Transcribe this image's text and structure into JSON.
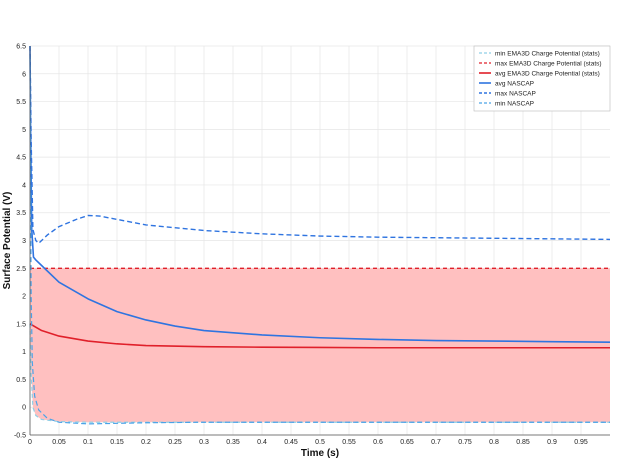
{
  "chart_data": {
    "type": "line",
    "title": "",
    "xlabel": "Time (s)",
    "ylabel": "Surface Potential (V)",
    "xlim": [
      0,
      1.0
    ],
    "ylim": [
      -0.5,
      6.5
    ],
    "x_ticks": [
      "0",
      "0.05",
      "0.1",
      "0.15",
      "0.2",
      "0.25",
      "0.3",
      "0.35",
      "0.4",
      "0.45",
      "0.5",
      "0.55",
      "0.6",
      "0.65",
      "0.7",
      "0.75",
      "0.8",
      "0.85",
      "0.9",
      "0.95"
    ],
    "y_ticks": [
      "-0.5",
      "0",
      "0.5",
      "1",
      "1.5",
      "2",
      "2.5",
      "3",
      "3.5",
      "4",
      "4.5",
      "5",
      "5.5",
      "6",
      "6.5"
    ],
    "grid": true,
    "legend_position": "top-right",
    "band": {
      "color": "#ffc0c0",
      "x": [
        0,
        0.002,
        0.005,
        0.01,
        0.02,
        0.05,
        0.1,
        0.2,
        0.3,
        0.5,
        0.7,
        1.0
      ],
      "upper": [
        2.5,
        2.5,
        2.5,
        2.5,
        2.5,
        2.5,
        2.5,
        2.5,
        2.5,
        2.5,
        2.5,
        2.5
      ],
      "lower": [
        1.5,
        0.6,
        0.0,
        -0.15,
        -0.22,
        -0.26,
        -0.27,
        -0.27,
        -0.27,
        -0.27,
        -0.27,
        -0.27
      ]
    },
    "series": [
      {
        "name": "min EMA3D Charge Potential (stats)",
        "color": "#8fcfe6",
        "dash": "4,3",
        "width": 1.2,
        "x": [
          0,
          0.002,
          0.005,
          0.01,
          0.02,
          0.05,
          0.1,
          0.2,
          0.3,
          0.5,
          0.7,
          1.0
        ],
        "y": [
          1.5,
          0.6,
          0.0,
          -0.15,
          -0.22,
          -0.26,
          -0.27,
          -0.27,
          -0.27,
          -0.27,
          -0.27,
          -0.27
        ]
      },
      {
        "name": "max EMA3D Charge Potential (stats)",
        "color": "#e0202a",
        "dash": "4,3",
        "width": 1.3,
        "x": [
          0,
          0.1,
          0.3,
          0.5,
          0.7,
          1.0
        ],
        "y": [
          2.5,
          2.5,
          2.5,
          2.5,
          2.5,
          2.5
        ]
      },
      {
        "name": "avg EMA3D Charge Potential (stats)",
        "color": "#e0202a",
        "dash": "",
        "width": 1.6,
        "x": [
          0,
          0.02,
          0.05,
          0.1,
          0.15,
          0.2,
          0.3,
          0.4,
          0.5,
          0.6,
          0.7,
          0.8,
          0.9,
          1.0
        ],
        "y": [
          1.5,
          1.38,
          1.28,
          1.19,
          1.14,
          1.11,
          1.09,
          1.08,
          1.075,
          1.07,
          1.07,
          1.07,
          1.07,
          1.07
        ]
      },
      {
        "name": "avg NASCAP",
        "color": "#2f74e0",
        "dash": "",
        "width": 1.6,
        "x": [
          0,
          0.001,
          0.003,
          0.006,
          0.01,
          0.02,
          0.05,
          0.1,
          0.15,
          0.2,
          0.25,
          0.3,
          0.4,
          0.5,
          0.6,
          0.7,
          0.8,
          0.9,
          1.0
        ],
        "y": [
          6.5,
          5.0,
          3.2,
          2.7,
          2.65,
          2.55,
          2.25,
          1.95,
          1.72,
          1.57,
          1.46,
          1.38,
          1.3,
          1.25,
          1.22,
          1.2,
          1.19,
          1.18,
          1.17
        ]
      },
      {
        "name": "max NASCAP",
        "color": "#2f74e0",
        "dash": "5,3",
        "width": 1.4,
        "x": [
          0,
          0.002,
          0.005,
          0.01,
          0.015,
          0.03,
          0.05,
          0.08,
          0.1,
          0.12,
          0.15,
          0.2,
          0.3,
          0.4,
          0.5,
          0.6,
          0.7,
          0.8,
          0.9,
          1.0
        ],
        "y": [
          6.5,
          4.8,
          3.2,
          3.0,
          2.95,
          3.1,
          3.25,
          3.38,
          3.45,
          3.44,
          3.38,
          3.28,
          3.18,
          3.12,
          3.08,
          3.06,
          3.05,
          3.04,
          3.03,
          3.02
        ]
      },
      {
        "name": "min NASCAP",
        "color": "#4aa3e8",
        "dash": "5,3",
        "width": 1.2,
        "x": [
          0,
          0.002,
          0.004,
          0.008,
          0.015,
          0.03,
          0.05,
          0.1,
          0.2,
          0.3,
          0.5,
          0.7,
          1.0
        ],
        "y": [
          6.3,
          2.0,
          0.8,
          0.2,
          -0.05,
          -0.2,
          -0.27,
          -0.3,
          -0.28,
          -0.27,
          -0.27,
          -0.27,
          -0.27
        ]
      }
    ]
  }
}
